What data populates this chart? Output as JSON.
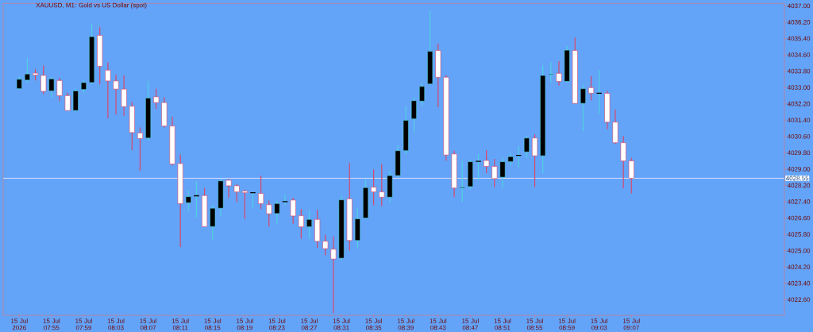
{
  "chart_data": {
    "type": "candlestick",
    "title": "XAUUSD, M1: Gold vs US Dollar (spot)",
    "x": [
      "2026-07-15T07:51",
      "2026-07-15T07:52",
      "2026-07-15T07:53",
      "2026-07-15T07:54",
      "2026-07-15T07:55",
      "2026-07-15T07:56",
      "2026-07-15T07:57",
      "2026-07-15T07:58",
      "2026-07-15T07:59",
      "2026-07-15T08:00",
      "2026-07-15T08:01",
      "2026-07-15T08:02",
      "2026-07-15T08:03",
      "2026-07-15T08:04",
      "2026-07-15T08:05",
      "2026-07-15T08:06",
      "2026-07-15T08:07",
      "2026-07-15T08:08",
      "2026-07-15T08:09",
      "2026-07-15T08:10",
      "2026-07-15T08:11",
      "2026-07-15T08:12",
      "2026-07-15T08:13",
      "2026-07-15T08:14",
      "2026-07-15T08:15",
      "2026-07-15T08:16",
      "2026-07-15T08:17",
      "2026-07-15T08:18",
      "2026-07-15T08:19",
      "2026-07-15T08:20",
      "2026-07-15T08:21",
      "2026-07-15T08:22",
      "2026-07-15T08:23",
      "2026-07-15T08:24",
      "2026-07-15T08:25",
      "2026-07-15T08:26",
      "2026-07-15T08:27",
      "2026-07-15T08:28",
      "2026-07-15T08:29",
      "2026-07-15T08:30",
      "2026-07-15T08:31",
      "2026-07-15T08:32",
      "2026-07-15T08:33",
      "2026-07-15T08:34",
      "2026-07-15T08:35",
      "2026-07-15T08:36",
      "2026-07-15T08:37",
      "2026-07-15T08:38",
      "2026-07-15T08:39",
      "2026-07-15T08:40",
      "2026-07-15T08:41",
      "2026-07-15T08:42",
      "2026-07-15T08:43",
      "2026-07-15T08:44",
      "2026-07-15T08:45",
      "2026-07-15T08:46",
      "2026-07-15T08:47",
      "2026-07-15T08:48",
      "2026-07-15T08:49",
      "2026-07-15T08:50",
      "2026-07-15T08:51",
      "2026-07-15T08:52",
      "2026-07-15T08:53",
      "2026-07-15T08:54",
      "2026-07-15T08:55",
      "2026-07-15T08:56",
      "2026-07-15T08:57",
      "2026-07-15T08:58",
      "2026-07-15T08:59",
      "2026-07-15T09:00",
      "2026-07-15T09:01",
      "2026-07-15T09:02",
      "2026-07-15T09:03",
      "2026-07-15T09:04",
      "2026-07-15T09:05",
      "2026-07-15T09:06",
      "2026-07-15T09:07"
    ],
    "ohlc": [
      [
        4032.94,
        4033.55,
        4032.9,
        4033.4
      ],
      [
        4033.36,
        4034.42,
        4033.24,
        4033.66
      ],
      [
        4033.7,
        4033.89,
        4033.34,
        4033.61
      ],
      [
        4033.59,
        4034.08,
        4032.67,
        4032.81
      ],
      [
        4032.83,
        4033.51,
        4032.52,
        4033.42
      ],
      [
        4033.34,
        4033.47,
        4032.33,
        4032.6
      ],
      [
        4032.6,
        4032.75,
        4031.87,
        4031.87
      ],
      [
        4031.87,
        4032.94,
        4031.82,
        4032.83
      ],
      [
        4032.9,
        4033.4,
        4032.71,
        4033.24
      ],
      [
        4033.24,
        4036.14,
        4033.17,
        4035.49
      ],
      [
        4035.55,
        4035.95,
        4033.15,
        4034.04
      ],
      [
        4033.85,
        4034.23,
        4031.49,
        4033.32
      ],
      [
        4033.32,
        4033.63,
        4031.68,
        4032.92
      ],
      [
        4032.92,
        4033.59,
        4031.61,
        4032.06
      ],
      [
        4032.08,
        4032.29,
        4029.93,
        4030.79
      ],
      [
        4030.77,
        4031.04,
        4028.91,
        4030.5
      ],
      [
        4030.52,
        4033.32,
        4030.41,
        4032.48
      ],
      [
        4032.54,
        4032.94,
        4031.95,
        4032.26
      ],
      [
        4032.26,
        4032.52,
        4031.04,
        4031.11
      ],
      [
        4031.11,
        4031.57,
        4029.17,
        4029.25
      ],
      [
        4029.27,
        4029.71,
        4025.18,
        4027.31
      ],
      [
        4027.35,
        4027.94,
        4026.93,
        4027.65
      ],
      [
        4027.69,
        4028.41,
        4026.62,
        4027.69
      ],
      [
        4027.7,
        4028.07,
        4026.17,
        4026.18
      ],
      [
        4026.18,
        4027.23,
        4025.52,
        4027.08
      ],
      [
        4027.08,
        4028.53,
        4026.7,
        4028.42
      ],
      [
        4028.45,
        4028.49,
        4027.59,
        4028.18
      ],
      [
        4028.18,
        4028.26,
        4027.38,
        4027.88
      ],
      [
        4027.92,
        4027.99,
        4026.55,
        4027.84
      ],
      [
        4027.84,
        4027.86,
        4027.12,
        4027.84
      ],
      [
        4027.8,
        4028.68,
        4027.04,
        4027.31
      ],
      [
        4027.25,
        4027.46,
        4026.18,
        4026.81
      ],
      [
        4026.82,
        4027.46,
        4026.32,
        4027.31
      ],
      [
        4027.4,
        4027.78,
        4027.23,
        4027.4
      ],
      [
        4027.48,
        4027.59,
        4026.32,
        4026.7
      ],
      [
        4026.71,
        4027.04,
        4025.59,
        4026.17
      ],
      [
        4026.17,
        4027.0,
        4025.59,
        4026.53
      ],
      [
        4026.53,
        4027.0,
        4025.14,
        4025.46
      ],
      [
        4025.46,
        4025.78,
        4024.77,
        4025.1
      ],
      [
        4025.07,
        4025.69,
        4021.94,
        4024.59
      ],
      [
        4024.63,
        4027.69,
        4024.53,
        4027.49
      ],
      [
        4027.54,
        4029.3,
        4025.0,
        4025.5
      ],
      [
        4025.5,
        4027.08,
        4025.11,
        4026.56
      ],
      [
        4026.6,
        4028.49,
        4026.56,
        4028.09
      ],
      [
        4028.11,
        4028.98,
        4027.23,
        4027.88
      ],
      [
        4027.88,
        4029.26,
        4027.19,
        4027.62
      ],
      [
        4027.62,
        4028.92,
        4027.35,
        4028.68
      ],
      [
        4028.68,
        4030.17,
        4028.6,
        4029.9
      ],
      [
        4029.9,
        4032.1,
        4029.74,
        4031.39
      ],
      [
        4031.46,
        4032.52,
        4030.81,
        4032.35
      ],
      [
        4032.33,
        4033.23,
        4032.1,
        4033.05
      ],
      [
        4033.17,
        4036.76,
        4033.13,
        4034.77
      ],
      [
        4034.81,
        4035.16,
        4032.03,
        4033.5
      ],
      [
        4033.5,
        4033.61,
        4029.4,
        4029.69
      ],
      [
        4029.74,
        4029.9,
        4027.62,
        4028.07
      ],
      [
        4028.07,
        4029.39,
        4027.38,
        4028.11
      ],
      [
        4028.14,
        4029.44,
        4028.01,
        4029.36
      ],
      [
        4029.38,
        4029.74,
        4028.46,
        4029.38
      ],
      [
        4029.42,
        4029.93,
        4028.8,
        4029.13
      ],
      [
        4029.13,
        4029.5,
        4028.11,
        4028.53
      ],
      [
        4028.6,
        4029.59,
        4028.07,
        4029.36
      ],
      [
        4029.36,
        4029.78,
        4029.17,
        4029.61
      ],
      [
        4029.67,
        4030.12,
        4029.07,
        4029.67
      ],
      [
        4029.84,
        4030.66,
        4029.55,
        4030.52
      ],
      [
        4030.52,
        4030.71,
        4028.11,
        4029.65
      ],
      [
        4029.65,
        4034.09,
        4028.79,
        4033.59
      ],
      [
        4033.63,
        4034.25,
        4033.23,
        4033.66
      ],
      [
        4033.69,
        4034.29,
        4033.09,
        4033.3
      ],
      [
        4033.3,
        4035.06,
        4033.23,
        4034.83
      ],
      [
        4034.81,
        4035.45,
        4032.22,
        4032.22
      ],
      [
        4032.22,
        4033.13,
        4030.87,
        4032.94
      ],
      [
        4032.99,
        4033.55,
        4032.37,
        4032.72
      ],
      [
        4032.72,
        4033.85,
        4031.72,
        4032.72
      ],
      [
        4032.71,
        4032.84,
        4030.95,
        4031.3
      ],
      [
        4031.3,
        4031.91,
        4030.24,
        4030.29
      ],
      [
        4030.29,
        4030.62,
        4028.05,
        4029.4
      ],
      [
        4029.4,
        4029.55,
        4027.81,
        4028.55
      ]
    ],
    "colors": [
      "#000000",
      "#000000",
      "#ffffff",
      "#ffffff",
      "#000000",
      "#ffffff",
      "#ffffff",
      "#000000",
      "#000000",
      "#000000",
      "#ffffff",
      "#ffffff",
      "#ffffff",
      "#ffffff",
      "#ffffff",
      "#ffffff",
      "#000000",
      "#ffffff",
      "#ffffff",
      "#ffffff",
      "#ffffff",
      "#000000",
      "#000000",
      "#ffffff",
      "#000000",
      "#000000",
      "#ffffff",
      "#ffffff",
      "#ffffff",
      "#000000",
      "#ffffff",
      "#ffffff",
      "#000000",
      "#000000",
      "#ffffff",
      "#ffffff",
      "#000000",
      "#ffffff",
      "#ffffff",
      "#ffffff",
      "#000000",
      "#ffffff",
      "#000000",
      "#000000",
      "#ffffff",
      "#ffffff",
      "#000000",
      "#000000",
      "#000000",
      "#000000",
      "#000000",
      "#000000",
      "#ffffff",
      "#ffffff",
      "#ffffff",
      "#000000",
      "#000000",
      "#000000",
      "#ffffff",
      "#ffffff",
      "#000000",
      "#000000",
      "#000000",
      "#000000",
      "#ffffff",
      "#000000",
      "#000000",
      "#ffffff",
      "#000000",
      "#ffffff",
      "#000000",
      "#ffffff",
      "#000000",
      "#ffffff",
      "#ffffff",
      "#ffffff",
      "#ffffff"
    ],
    "xlim": [
      "2026-07-15T07:49",
      "2026-07-15T09:26"
    ],
    "xticks": [
      {
        "value": "2026-07-15T07:51",
        "label": "15 Jul 2026"
      },
      {
        "value": "2026-07-15T07:55",
        "label": "15 Jul 07:55"
      },
      {
        "value": "2026-07-15T07:59",
        "label": "15 Jul 07:59"
      },
      {
        "value": "2026-07-15T08:03",
        "label": "15 Jul 08:03"
      },
      {
        "value": "2026-07-15T08:07",
        "label": "15 Jul 08:07"
      },
      {
        "value": "2026-07-15T08:11",
        "label": "15 Jul 08:11"
      },
      {
        "value": "2026-07-15T08:15",
        "label": "15 Jul 08:15"
      },
      {
        "value": "2026-07-15T08:19",
        "label": "15 Jul 08:19"
      },
      {
        "value": "2026-07-15T08:23",
        "label": "15 Jul 08:23"
      },
      {
        "value": "2026-07-15T08:27",
        "label": "15 Jul 08:27"
      },
      {
        "value": "2026-07-15T08:31",
        "label": "15 Jul 08:31"
      },
      {
        "value": "2026-07-15T08:35",
        "label": "15 Jul 08:35"
      },
      {
        "value": "2026-07-15T08:39",
        "label": "15 Jul 08:39"
      },
      {
        "value": "2026-07-15T08:43",
        "label": "15 Jul 08:43"
      },
      {
        "value": "2026-07-15T08:47",
        "label": "15 Jul 08:47"
      },
      {
        "value": "2026-07-15T08:51",
        "label": "15 Jul 08:51"
      },
      {
        "value": "2026-07-15T08:55",
        "label": "15 Jul 08:55"
      },
      {
        "value": "2026-07-15T08:59",
        "label": "15 Jul 08:59"
      },
      {
        "value": "2026-07-15T09:03",
        "label": "15 Jul 09:03"
      },
      {
        "value": "2026-07-15T09:07",
        "label": "15 Jul 09:07"
      }
    ],
    "ylim": [
      4021.83,
      4037.12
    ],
    "yticks": [
      {
        "value": 4037.0,
        "label": "4037.00"
      },
      {
        "value": 4036.2,
        "label": "4036.20"
      },
      {
        "value": 4035.4,
        "label": "4035.40"
      },
      {
        "value": 4034.6,
        "label": "4034.60"
      },
      {
        "value": 4033.8,
        "label": "4033.80"
      },
      {
        "value": 4033.0,
        "label": "4033.00"
      },
      {
        "value": 4032.2,
        "label": "4032.20"
      },
      {
        "value": 4031.4,
        "label": "4031.40"
      },
      {
        "value": 4030.6,
        "label": "4030.60"
      },
      {
        "value": 4029.8,
        "label": "4029.80"
      },
      {
        "value": 4029.0,
        "label": "4029.00"
      },
      {
        "value": 4028.2,
        "label": "4028.20"
      },
      {
        "value": 4027.4,
        "label": "4027.40"
      },
      {
        "value": 4026.6,
        "label": "4026.60"
      },
      {
        "value": 4025.8,
        "label": "4025.80"
      },
      {
        "value": 4025.0,
        "label": "4025.00"
      },
      {
        "value": 4024.2,
        "label": "4024.20"
      },
      {
        "value": 4023.4,
        "label": "4023.40"
      },
      {
        "value": 4022.6,
        "label": "4022.60"
      }
    ],
    "ref_lines": [
      {
        "axis": "y",
        "value": 4028.55,
        "label": "4028.55",
        "color": "#e8e4fa"
      }
    ]
  }
}
